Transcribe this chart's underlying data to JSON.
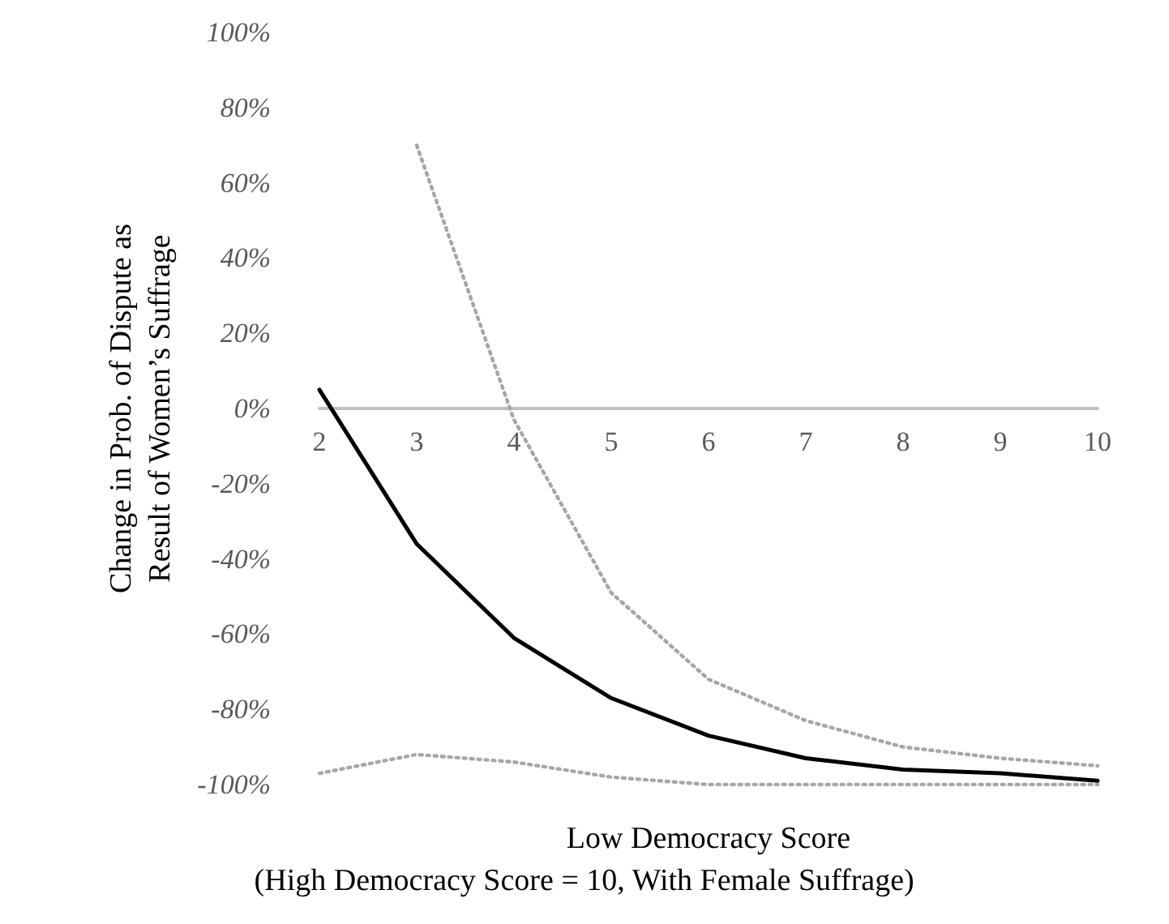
{
  "chart_data": {
    "type": "line",
    "xlabel": "Low Democracy Score",
    "ylabel": "Change in Prob. of Dispute as\nResult of Women’s Suffrage",
    "annotations": [
      "(High Democracy Score = 10, With Female Suffrage)"
    ],
    "categories": [
      "2",
      "3",
      "4",
      "5",
      "6",
      "7",
      "8",
      "9",
      "10"
    ],
    "series": [
      {
        "color": "#000000",
        "line_style": "solid",
        "values": [
          5,
          -36,
          -61,
          -77,
          -87,
          -93,
          -96,
          -97,
          -99
        ]
      },
      {
        "color": "#a6a6a6",
        "line_style": "dotted",
        "values": [
          null,
          70,
          -3,
          -49,
          -72,
          -83,
          -90,
          -93,
          -95
        ]
      },
      {
        "color": "#a6a6a6",
        "line_style": "dotted",
        "values": [
          -97,
          -92,
          -94,
          -98,
          -100,
          -100,
          -100,
          -100,
          -100
        ]
      }
    ],
    "ylim": [
      -100,
      100
    ],
    "yticks": [
      {
        "value": 100,
        "label": "100%"
      },
      {
        "value": 80,
        "label": "80%"
      },
      {
        "value": 60,
        "label": "60%"
      },
      {
        "value": 40,
        "label": "40%"
      },
      {
        "value": 20,
        "label": "20%"
      },
      {
        "value": 0,
        "label": "0%"
      },
      {
        "value": -20,
        "label": "-20%"
      },
      {
        "value": -40,
        "label": "-40%"
      },
      {
        "value": -60,
        "label": "-60%"
      },
      {
        "value": -80,
        "label": "-80%"
      },
      {
        "value": -100,
        "label": "-100%"
      }
    ],
    "grid": false,
    "marker": "none"
  }
}
